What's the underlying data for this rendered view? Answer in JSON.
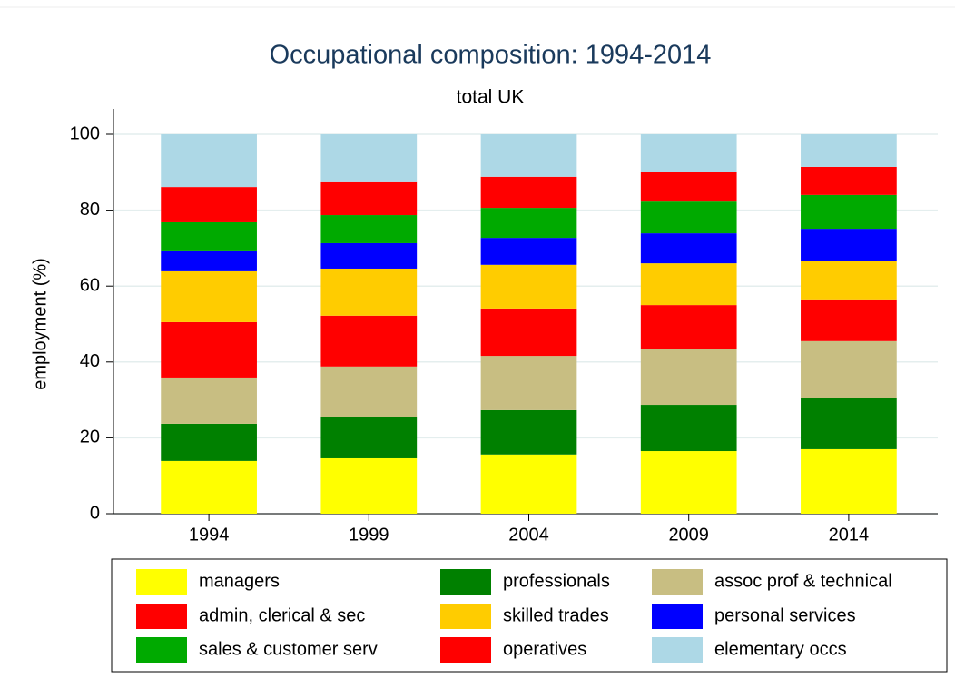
{
  "chart_data": {
    "type": "stacked_bar",
    "title": "Occupational composition: 1994-2014",
    "subtitle": "total UK",
    "y_label": "employment (%)",
    "categories": [
      "1994",
      "1999",
      "2004",
      "2009",
      "2014"
    ],
    "series": [
      {
        "name": "managers",
        "color": "#ffff00",
        "values": [
          13.9,
          14.6,
          15.6,
          16.5,
          17.0
        ]
      },
      {
        "name": "professionals",
        "color": "#008000",
        "values": [
          9.8,
          11.0,
          11.7,
          12.2,
          13.4
        ]
      },
      {
        "name": "assoc prof & technical",
        "color": "#c8be82",
        "values": [
          12.2,
          13.2,
          14.3,
          14.6,
          15.1
        ]
      },
      {
        "name": "admin, clerical & sec",
        "color": "#ff0000",
        "values": [
          14.6,
          13.4,
          12.5,
          11.7,
          11.0
        ]
      },
      {
        "name": "skilled trades",
        "color": "#ffcc00",
        "values": [
          13.4,
          12.4,
          11.5,
          11.0,
          10.2
        ]
      },
      {
        "name": "personal services",
        "color": "#0000ff",
        "values": [
          5.5,
          6.7,
          7.1,
          7.9,
          8.4
        ]
      },
      {
        "name": "sales & customer serv",
        "color": "#00aa00",
        "values": [
          7.4,
          7.4,
          7.9,
          8.6,
          8.9
        ]
      },
      {
        "name": "operatives",
        "color": "#ff0000",
        "values": [
          9.3,
          8.9,
          8.2,
          7.5,
          7.4
        ]
      },
      {
        "name": "elementary occs",
        "color": "#add8e6",
        "values": [
          13.9,
          12.4,
          11.2,
          10.0,
          8.6
        ]
      }
    ],
    "ylim": [
      0,
      100
    ],
    "yticks": [
      0,
      20,
      40,
      60,
      80,
      100
    ],
    "grid": true
  }
}
